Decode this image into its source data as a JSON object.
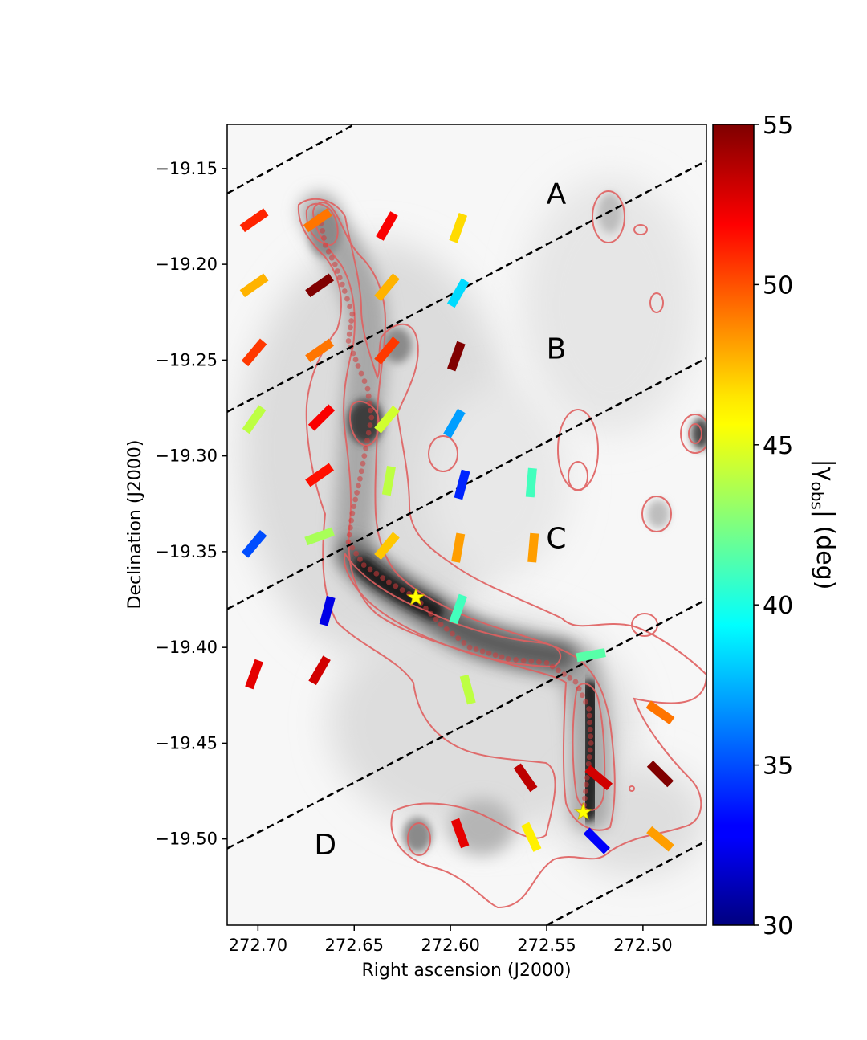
{
  "chart_data": {
    "type": "scatter",
    "xlabel": "Right ascension (J2000)",
    "ylabel": "Declination (J2000)",
    "xlim": [
      272.716,
      272.467
    ],
    "ylim": [
      -19.545,
      -19.127
    ],
    "x_ticks": [
      {
        "value": 272.7,
        "label": "272.70"
      },
      {
        "value": 272.65,
        "label": "272.65"
      },
      {
        "value": 272.6,
        "label": "272.60"
      },
      {
        "value": 272.55,
        "label": "272.55"
      },
      {
        "value": 272.5,
        "label": "272.50"
      }
    ],
    "y_ticks": [
      {
        "value": -19.15,
        "label": "−19.15"
      },
      {
        "value": -19.2,
        "label": "−19.20"
      },
      {
        "value": -19.25,
        "label": "−19.25"
      },
      {
        "value": -19.3,
        "label": "−19.30"
      },
      {
        "value": -19.35,
        "label": "−19.35"
      },
      {
        "value": -19.4,
        "label": "−19.40"
      },
      {
        "value": -19.45,
        "label": "−19.45"
      },
      {
        "value": -19.5,
        "label": "−19.50"
      }
    ],
    "grid": false,
    "colorbar": {
      "label": "|γobs| (deg)",
      "label_main": "|γ",
      "label_sub": "obs",
      "label_tail": "| (deg)",
      "colormap": "jet",
      "range": [
        30,
        55
      ],
      "ticks": [
        {
          "value": 30,
          "label": "30"
        },
        {
          "value": 35,
          "label": "35"
        },
        {
          "value": 40,
          "label": "40"
        },
        {
          "value": 45,
          "label": "45"
        },
        {
          "value": 50,
          "label": "50"
        },
        {
          "value": 55,
          "label": "55"
        }
      ]
    },
    "region_labels": [
      {
        "text": "A",
        "ra": 272.545,
        "dec": -19.164
      },
      {
        "text": "B",
        "ra": 272.545,
        "dec": -19.245
      },
      {
        "text": "C",
        "ra": 272.545,
        "dec": -19.344
      },
      {
        "text": "D",
        "ra": 272.665,
        "dec": -19.504
      }
    ],
    "boundary_lines": [
      {
        "ra1": 272.716,
        "dec1": -19.163,
        "ra2": 272.65,
        "dec2": -19.127
      },
      {
        "ra1": 272.716,
        "dec1": -19.277,
        "ra2": 272.467,
        "dec2": -19.146
      },
      {
        "ra1": 272.716,
        "dec1": -19.38,
        "ra2": 272.467,
        "dec2": -19.249
      },
      {
        "ra1": 272.716,
        "dec1": -19.505,
        "ra2": 272.467,
        "dec2": -19.375
      },
      {
        "ra1": 272.55,
        "dec1": -19.545,
        "ra2": 272.467,
        "dec2": -19.501
      }
    ],
    "stars": [
      {
        "ra": 272.618,
        "dec": -19.374
      },
      {
        "ra": 272.531,
        "dec": -19.486
      }
    ],
    "polarization_segments": [
      {
        "ra": 272.702,
        "dec": -19.177,
        "angle": 55,
        "gamma": 51
      },
      {
        "ra": 272.669,
        "dec": -19.177,
        "angle": 55,
        "gamma": 49
      },
      {
        "ra": 272.633,
        "dec": -19.18,
        "angle": 30,
        "gamma": 52
      },
      {
        "ra": 272.596,
        "dec": -19.181,
        "angle": 20,
        "gamma": 46.5
      },
      {
        "ra": 272.702,
        "dec": -19.211,
        "angle": 55,
        "gamma": 47.5
      },
      {
        "ra": 272.668,
        "dec": -19.211,
        "angle": 55,
        "gamma": 55
      },
      {
        "ra": 272.633,
        "dec": -19.212,
        "angle": 40,
        "gamma": 47.5
      },
      {
        "ra": 272.596,
        "dec": -19.215,
        "angle": 30,
        "gamma": 38.5
      },
      {
        "ra": 272.702,
        "dec": -19.246,
        "angle": 40,
        "gamma": 50.5
      },
      {
        "ra": 272.668,
        "dec": -19.245,
        "angle": 55,
        "gamma": 49
      },
      {
        "ra": 272.633,
        "dec": -19.245,
        "angle": 40,
        "gamma": 50.5
      },
      {
        "ra": 272.597,
        "dec": -19.248,
        "angle": 20,
        "gamma": 55
      },
      {
        "ra": 272.702,
        "dec": -19.281,
        "angle": 35,
        "gamma": 44
      },
      {
        "ra": 272.667,
        "dec": -19.28,
        "angle": 45,
        "gamma": 52
      },
      {
        "ra": 272.633,
        "dec": -19.281,
        "angle": 40,
        "gamma": 44.5
      },
      {
        "ra": 272.598,
        "dec": -19.283,
        "angle": 30,
        "gamma": 37
      },
      {
        "ra": 272.668,
        "dec": -19.31,
        "angle": 55,
        "gamma": 51.5
      },
      {
        "ra": 272.632,
        "dec": -19.313,
        "angle": 10,
        "gamma": 44
      },
      {
        "ra": 272.594,
        "dec": -19.315,
        "angle": 15,
        "gamma": 34
      },
      {
        "ra": 272.558,
        "dec": -19.314,
        "angle": 5,
        "gamma": 41
      },
      {
        "ra": 272.702,
        "dec": -19.346,
        "angle": 40,
        "gamma": 35
      },
      {
        "ra": 272.668,
        "dec": -19.342,
        "angle": 70,
        "gamma": 43.5
      },
      {
        "ra": 272.633,
        "dec": -19.347,
        "angle": 40,
        "gamma": 47
      },
      {
        "ra": 272.596,
        "dec": -19.348,
        "angle": 10,
        "gamma": 48
      },
      {
        "ra": 272.557,
        "dec": -19.348,
        "angle": 5,
        "gamma": 48
      },
      {
        "ra": 272.664,
        "dec": -19.381,
        "angle": 15,
        "gamma": 32.5
      },
      {
        "ra": 272.596,
        "dec": -19.38,
        "angle": 20,
        "gamma": 41
      },
      {
        "ra": 272.702,
        "dec": -19.414,
        "angle": 20,
        "gamma": 52.5
      },
      {
        "ra": 272.668,
        "dec": -19.412,
        "angle": 30,
        "gamma": 53
      },
      {
        "ra": 272.527,
        "dec": -19.404,
        "angle": 80,
        "gamma": 41.5
      },
      {
        "ra": 272.591,
        "dec": -19.422,
        "angle": -15,
        "gamma": 44
      },
      {
        "ra": 272.491,
        "dec": -19.434,
        "angle": -55,
        "gamma": 49
      },
      {
        "ra": 272.561,
        "dec": -19.468,
        "angle": -35,
        "gamma": 53.5
      },
      {
        "ra": 272.523,
        "dec": -19.468,
        "angle": -50,
        "gamma": 53
      },
      {
        "ra": 272.491,
        "dec": -19.466,
        "angle": -45,
        "gamma": 55
      },
      {
        "ra": 272.595,
        "dec": -19.497,
        "angle": -20,
        "gamma": 52.5
      },
      {
        "ra": 272.558,
        "dec": -19.499,
        "angle": -25,
        "gamma": 46
      },
      {
        "ra": 272.524,
        "dec": -19.501,
        "angle": -45,
        "gamma": 33
      },
      {
        "ra": 272.491,
        "dec": -19.5,
        "angle": -50,
        "gamma": 48
      }
    ],
    "filament_spine": [
      [
        272.668,
        -19.175
      ],
      [
        272.665,
        -19.19
      ],
      [
        272.66,
        -19.2
      ],
      [
        272.655,
        -19.214
      ],
      [
        272.651,
        -19.226
      ],
      [
        272.653,
        -19.24
      ],
      [
        272.648,
        -19.253
      ],
      [
        272.643,
        -19.265
      ],
      [
        272.641,
        -19.28
      ],
      [
        272.644,
        -19.296
      ],
      [
        272.647,
        -19.312
      ],
      [
        272.651,
        -19.33
      ],
      [
        272.653,
        -19.345
      ],
      [
        272.645,
        -19.357
      ],
      [
        272.632,
        -19.366
      ],
      [
        272.618,
        -19.374
      ],
      [
        272.605,
        -19.388
      ],
      [
        272.59,
        -19.4
      ],
      [
        272.57,
        -19.406
      ],
      [
        272.55,
        -19.408
      ],
      [
        272.535,
        -19.418
      ],
      [
        272.528,
        -19.432
      ],
      [
        272.527,
        -19.45
      ],
      [
        272.529,
        -19.468
      ],
      [
        272.531,
        -19.486
      ]
    ]
  }
}
